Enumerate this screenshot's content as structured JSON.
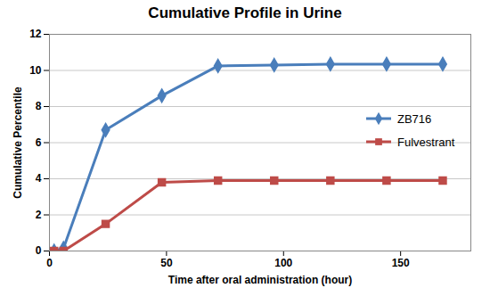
{
  "chart_data": {
    "type": "line",
    "title": "Cumulative Profile in Urine",
    "x_label": "Time after oral administration (hour)",
    "y_label": "Cumulative Percentile",
    "x": [
      2,
      6,
      24,
      48,
      72,
      96,
      120,
      144,
      168
    ],
    "series": [
      {
        "name": "ZB716",
        "color": "#4a7ebb",
        "marker": "diamond",
        "values": [
          0,
          0.15,
          6.7,
          8.6,
          10.25,
          10.3,
          10.35,
          10.35,
          10.35
        ]
      },
      {
        "name": "Fulvestrant",
        "color": "#be4b48",
        "marker": "square",
        "values": [
          0,
          0,
          1.5,
          3.8,
          3.9,
          3.9,
          3.9,
          3.9,
          3.9
        ]
      }
    ],
    "xlim": [
      0,
      180
    ],
    "xticks": [
      0,
      50,
      100,
      150
    ],
    "ylim": [
      0,
      12
    ],
    "yticks": [
      0,
      2,
      4,
      6,
      8,
      10,
      12
    ],
    "grid": true,
    "legend": "right"
  }
}
